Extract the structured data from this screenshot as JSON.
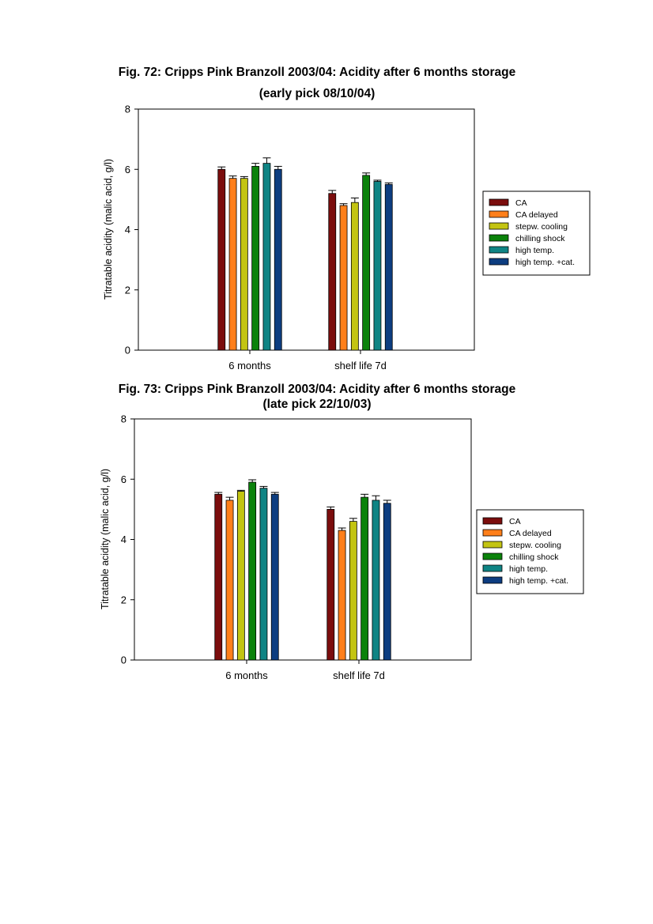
{
  "figures": [
    {
      "title": "Fig. 72: Cripps Pink Branzoll 2003/04: Acidity after 6 months storage",
      "subtitle": "(early pick 08/10/04)"
    },
    {
      "title": "Fig. 73: Cripps Pink Branzoll 2003/04: Acidity after 6 months storage",
      "subtitle": "(late pick 22/10/03)"
    }
  ],
  "chart_data": [
    {
      "type": "bar",
      "title": "Fig. 72: Cripps Pink Branzoll 2003/04: Acidity after 6 months storage",
      "subtitle": "(early pick 08/10/04)",
      "xlabel": "",
      "ylabel": "Titratable acidity (malic acid, g/l)",
      "ylim": [
        0,
        8
      ],
      "yticks": [
        0,
        2,
        4,
        6,
        8
      ],
      "categories": [
        "6 months",
        "shelf life 7d"
      ],
      "legend_position": "right",
      "grid": false,
      "series": [
        {
          "name": "CA",
          "color": "#7b0d0d",
          "values": [
            6.0,
            5.2
          ],
          "errors": [
            0.08,
            0.1
          ]
        },
        {
          "name": "CA delayed",
          "color": "#ff7f1a",
          "values": [
            5.7,
            4.8
          ],
          "errors": [
            0.08,
            0.06
          ]
        },
        {
          "name": "stepw. cooling",
          "color": "#c3c412",
          "values": [
            5.7,
            4.9
          ],
          "errors": [
            0.06,
            0.15
          ]
        },
        {
          "name": "chilling shock",
          "color": "#0b820b",
          "values": [
            6.1,
            5.8
          ],
          "errors": [
            0.1,
            0.08
          ]
        },
        {
          "name": "high temp.",
          "color": "#0f8484",
          "values": [
            6.2,
            5.6
          ],
          "errors": [
            0.18,
            0.04
          ]
        },
        {
          "name": "high temp. +cat.",
          "color": "#0d3d80",
          "values": [
            6.0,
            5.5
          ],
          "errors": [
            0.1,
            0.05
          ]
        }
      ]
    },
    {
      "type": "bar",
      "title": "Fig. 73: Cripps Pink Branzoll 2003/04: Acidity after 6 months storage",
      "subtitle": "(late pick 22/10/03)",
      "xlabel": "",
      "ylabel": "Titratable acidity (malic acid, g/l)",
      "ylim": [
        0,
        8
      ],
      "yticks": [
        0,
        2,
        4,
        6,
        8
      ],
      "categories": [
        "6 months",
        "shelf life 7d"
      ],
      "legend_position": "right",
      "grid": false,
      "series": [
        {
          "name": "CA",
          "color": "#7b0d0d",
          "values": [
            5.5,
            5.0
          ],
          "errors": [
            0.06,
            0.08
          ]
        },
        {
          "name": "CA delayed",
          "color": "#ff7f1a",
          "values": [
            5.3,
            4.3
          ],
          "errors": [
            0.1,
            0.08
          ]
        },
        {
          "name": "stepw. cooling",
          "color": "#c3c412",
          "values": [
            5.6,
            4.6
          ],
          "errors": [
            0.03,
            0.1
          ]
        },
        {
          "name": "chilling shock",
          "color": "#0b820b",
          "values": [
            5.9,
            5.4
          ],
          "errors": [
            0.08,
            0.1
          ]
        },
        {
          "name": "high temp.",
          "color": "#0f8484",
          "values": [
            5.7,
            5.3
          ],
          "errors": [
            0.06,
            0.15
          ]
        },
        {
          "name": "high temp. +cat.",
          "color": "#0d3d80",
          "values": [
            5.5,
            5.2
          ],
          "errors": [
            0.06,
            0.1
          ]
        }
      ]
    }
  ]
}
